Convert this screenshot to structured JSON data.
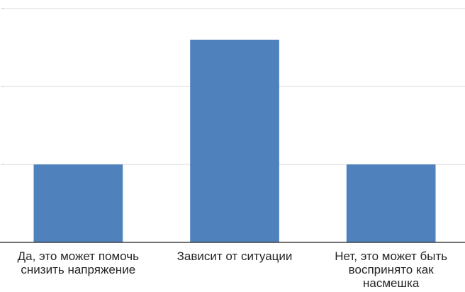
{
  "chart_data": {
    "type": "bar",
    "categories": [
      "Да, это может помочь снизить напряжение",
      "Зависит от ситуации",
      "Нет, это может быть воспринято как насмешка"
    ],
    "values": [
      1,
      2.6,
      1
    ],
    "ylim": [
      0,
      3
    ],
    "grid": true,
    "legend": "none",
    "bar_color": "#4f81bd",
    "grid_color": "#d9d9d9",
    "axis_color": "#404040"
  }
}
